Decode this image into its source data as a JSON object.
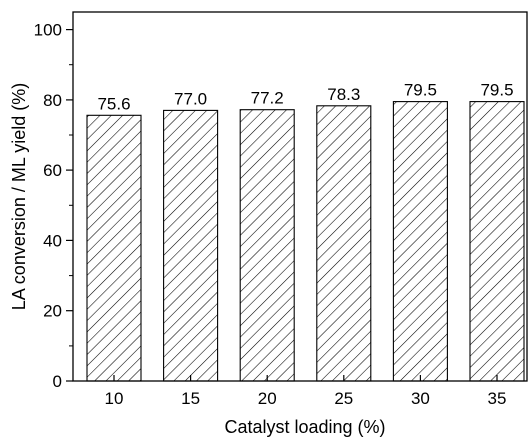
{
  "chart_data": {
    "type": "bar",
    "title": "",
    "xlabel": "Catalyst loading (%)",
    "ylabel": "LA conversion / ML yield (%)",
    "categories": [
      "10",
      "15",
      "20",
      "25",
      "30",
      "35"
    ],
    "values": [
      75.6,
      77.0,
      77.2,
      78.3,
      79.5,
      79.5
    ],
    "value_labels": [
      "75.6",
      "77.0",
      "77.2",
      "78.3",
      "79.5",
      "79.5"
    ],
    "ylim": [
      0,
      105
    ],
    "yticks": [
      0,
      20,
      40,
      60,
      80,
      100
    ],
    "ytick_labels": [
      "0",
      "20",
      "40",
      "60",
      "80",
      "100"
    ],
    "grid": false,
    "bar_fill": "diagonal-hatch",
    "bar_color": "#000000"
  }
}
